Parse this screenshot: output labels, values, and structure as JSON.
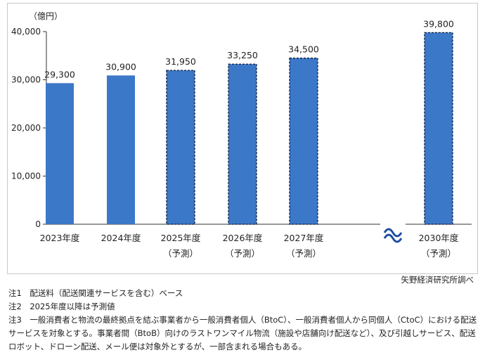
{
  "chart_data": {
    "type": "bar",
    "unit_label": "（億円）",
    "categories": [
      "2023年度",
      "2024年度",
      "2025年度",
      "2026年度",
      "2027年度",
      "2030年度"
    ],
    "sublabels": [
      "",
      "",
      "（予測）",
      "（予測）",
      "（予測）",
      "（予測）"
    ],
    "values": [
      29300,
      30900,
      31950,
      33250,
      34500,
      39800
    ],
    "value_labels": [
      "29,300",
      "30,900",
      "31,950",
      "33,250",
      "34,500",
      "39,800"
    ],
    "forecast": [
      false,
      false,
      true,
      true,
      true,
      true
    ],
    "ylim": [
      0,
      40000
    ],
    "yticks": [
      0,
      10000,
      20000,
      30000,
      40000
    ],
    "ytick_labels": [
      "0",
      "10,000",
      "20,000",
      "30,000",
      "40,000"
    ],
    "grid": false,
    "colors": {
      "bar": "#3c78c8",
      "forecast_border": "#0d1b3d"
    }
  },
  "source": "矢野経済研究所調べ",
  "notes": [
    "注1　配送料（配送関連サービスを含む）ベース",
    "注2　2025年度以降は予測値",
    "注3　一般消費者と物流の最終拠点を結ぶ事業者から一般消費者個人（BtoC）、一般消費者個人から同個人（CtoC）における配送サービスを対象とする。事業者間（BtoB）向けのラストワンマイル物流（施設や店舗向け配送など）、及び引越しサービス、配送ロボット、ドローン配送、メール便は対象外とするが、一部含まれる場合もある。"
  ]
}
